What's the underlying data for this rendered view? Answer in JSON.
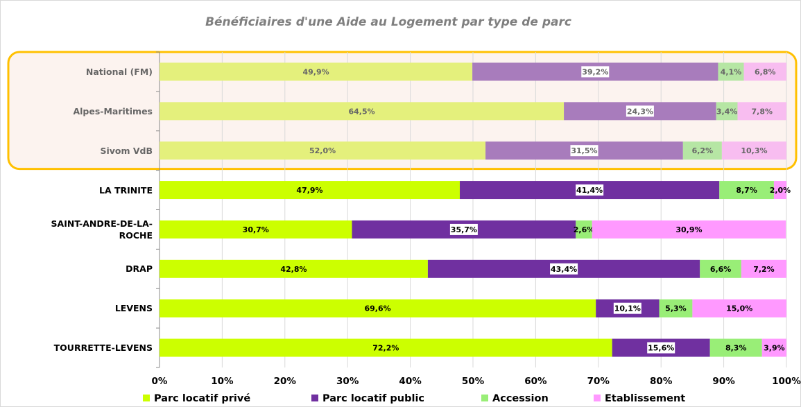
{
  "chart_data": {
    "type": "stacked_bar_horizontal",
    "title": "Bénéficiaires d'une Aide au Logement par type de parc",
    "categories": [
      "National (FM)",
      "Alpes-Maritimes",
      "Sivom VdB",
      "LA TRINITE",
      "SAINT-ANDRE-DE-LA-ROCHE",
      "DRAP",
      "LEVENS",
      "TOURRETTE-LEVENS"
    ],
    "boxed_categories": [
      0,
      1,
      2
    ],
    "series": [
      {
        "name": "Parc locatif privé",
        "color": "#ccff00",
        "muted_color": "#e4f07c",
        "values": [
          49.9,
          64.5,
          52.0,
          47.9,
          30.7,
          42.8,
          69.6,
          72.2
        ],
        "value_labels": [
          "49,9%",
          "64,5%",
          "52,0%",
          "47,9%",
          "30,7%",
          "42,8%",
          "69,6%",
          "72,2%"
        ]
      },
      {
        "name": "Parc locatif public",
        "color": "#7030a0",
        "muted_color": "#a87cbc",
        "label_box": true,
        "values": [
          39.2,
          24.3,
          31.5,
          41.4,
          35.7,
          43.4,
          10.1,
          15.6
        ],
        "value_labels": [
          "39,2%",
          "24,3%",
          "31,5%",
          "41,4%",
          "35,7%",
          "43,4%",
          "10,1%",
          "15,6%"
        ]
      },
      {
        "name": "Accession",
        "color": "#99ee77",
        "muted_color": "#b6e6a4",
        "values": [
          4.1,
          3.4,
          6.2,
          8.7,
          2.6,
          6.6,
          5.3,
          8.3
        ],
        "value_labels": [
          "4,1%",
          "3,4%",
          "6,2%",
          "8,7%",
          "2,6%",
          "6,6%",
          "5,3%",
          "8,3%"
        ]
      },
      {
        "name": "Etablissement",
        "color": "#ff99ff",
        "muted_color": "#f8bdf0",
        "values": [
          6.8,
          7.8,
          10.3,
          2.0,
          30.9,
          7.2,
          15.0,
          3.9
        ],
        "value_labels": [
          "6,8%",
          "7,8%",
          "10,3%",
          "2,0%",
          "30,9%",
          "7,2%",
          "15,0%",
          "3,9%"
        ]
      }
    ],
    "xlim": [
      0,
      100
    ],
    "xticks": [
      {
        "value": 0,
        "label": "0%"
      },
      {
        "value": 10,
        "label": "10%"
      },
      {
        "value": 20,
        "label": "20%"
      },
      {
        "value": 30,
        "label": "30%"
      },
      {
        "value": 40,
        "label": "40%"
      },
      {
        "value": 50,
        "label": "50%"
      },
      {
        "value": 60,
        "label": "60%"
      },
      {
        "value": 70,
        "label": "70%"
      },
      {
        "value": 80,
        "label": "80%"
      },
      {
        "value": 90,
        "label": "90%"
      },
      {
        "value": 100,
        "label": "100%"
      }
    ],
    "grid": true,
    "legend": "bottom"
  }
}
